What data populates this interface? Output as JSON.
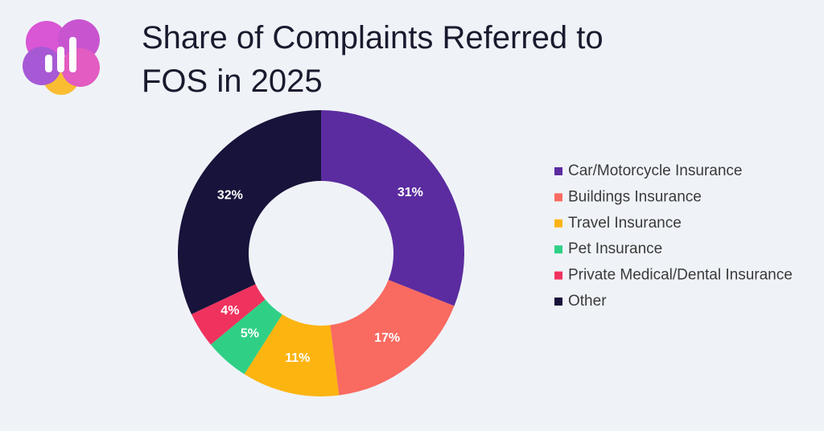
{
  "chart_data": {
    "type": "pie",
    "title": "Share of Complaints Referred to FOS in 2025",
    "categories": [
      "Car/Motorcycle Insurance",
      "Buildings Insurance",
      "Travel Insurance",
      "Pet Insurance",
      "Private Medical/Dental Insurance",
      "Other"
    ],
    "values": [
      31,
      17,
      11,
      5,
      4,
      32
    ],
    "value_labels": [
      "31%",
      "17%",
      "11%",
      "5%",
      "4%",
      "32%"
    ],
    "colors": [
      "#5b2c9f",
      "#f96a60",
      "#fcb410",
      "#2fd086",
      "#f0325e",
      "#17133a"
    ]
  }
}
